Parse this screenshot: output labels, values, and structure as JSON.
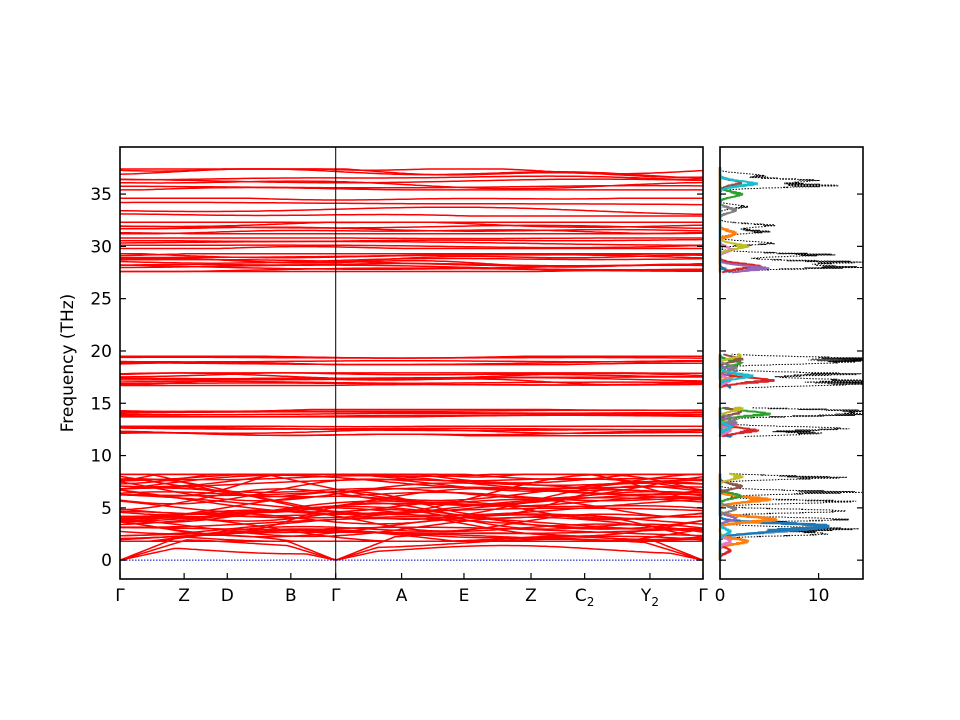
{
  "chart_data": [
    {
      "type": "line",
      "subtype": "phonon-band-structure",
      "title": "",
      "xlabel": "",
      "ylabel": "Frequency (THz)",
      "ylim": [
        -1.8,
        39.5
      ],
      "grid": false,
      "legend": "none",
      "line_color": "#ff0000",
      "zero_line_color": "#0000cc",
      "yticks": [
        0,
        5,
        10,
        15,
        20,
        25,
        30,
        35
      ],
      "kpoints": [
        {
          "label": "Γ",
          "sub": "",
          "x": 0.0
        },
        {
          "label": "Z",
          "sub": "",
          "x": 0.11
        },
        {
          "label": "D",
          "sub": "",
          "x": 0.184
        },
        {
          "label": "B",
          "sub": "",
          "x": 0.293
        },
        {
          "label": "Γ",
          "sub": "",
          "x": 0.37
        },
        {
          "label": "A",
          "sub": "",
          "x": 0.483
        },
        {
          "label": "E",
          "sub": "",
          "x": 0.59
        },
        {
          "label": "Z",
          "sub": "",
          "x": 0.705
        },
        {
          "label": "C",
          "sub": "2",
          "x": 0.797
        },
        {
          "label": "Y",
          "sub": "2",
          "x": 0.909
        },
        {
          "label": "Γ",
          "sub": "",
          "x": 1.0
        }
      ],
      "band_groups": [
        {
          "name": "acoustic",
          "range": [
            0,
            2.6
          ],
          "count": 3,
          "gamma_zero": true
        },
        {
          "name": "low-optical",
          "range": [
            1.8,
            8.2
          ],
          "count": 46
        },
        {
          "name": "band-12",
          "range": [
            11.9,
            12.8
          ],
          "count": 6
        },
        {
          "name": "band-14",
          "range": [
            13.7,
            14.4
          ],
          "count": 6
        },
        {
          "name": "band-17",
          "range": [
            16.7,
            17.9
          ],
          "count": 9
        },
        {
          "name": "band-19",
          "range": [
            18.7,
            19.5
          ],
          "count": 5
        },
        {
          "name": "band-28",
          "range": [
            27.6,
            29.3
          ],
          "count": 12
        },
        {
          "name": "band-30",
          "range": [
            29.8,
            30.8
          ],
          "count": 5
        },
        {
          "name": "band-32",
          "range": [
            31.2,
            32.3
          ],
          "count": 6
        },
        {
          "name": "band-34",
          "range": [
            32.9,
            34.6
          ],
          "count": 4
        },
        {
          "name": "band-36",
          "range": [
            35.4,
            37.4
          ],
          "count": 8
        }
      ]
    },
    {
      "type": "line",
      "subtype": "phonon-density-of-states",
      "title": "",
      "xlabel": "",
      "ylabel": "",
      "xlim": [
        0,
        14.5
      ],
      "ylim": [
        -1.8,
        39.5
      ],
      "xticks": [
        0,
        10
      ],
      "grid": false,
      "legend": "none",
      "total_style": "black-dotted",
      "projection_colors": [
        "#1f77b4",
        "#ff7f0e",
        "#2ca02c",
        "#d62728",
        "#9467bd",
        "#8c564b",
        "#e377c2",
        "#7f7f7f",
        "#bcbd22",
        "#17becf"
      ],
      "total_peaks": [
        {
          "freq": 36.3,
          "value": 10.5
        },
        {
          "freq": 35.8,
          "value": 12.0
        },
        {
          "freq": 36.8,
          "value": 4.5
        },
        {
          "freq": 33.8,
          "value": 3.0
        },
        {
          "freq": 32.0,
          "value": 6.0
        },
        {
          "freq": 31.4,
          "value": 5.2
        },
        {
          "freq": 30.3,
          "value": 6.0
        },
        {
          "freq": 29.2,
          "value": 12.0
        },
        {
          "freq": 28.5,
          "value": 14.5
        },
        {
          "freq": 28.0,
          "value": 14.5
        },
        {
          "freq": 19.3,
          "value": 14.5
        },
        {
          "freq": 18.9,
          "value": 13.0
        },
        {
          "freq": 17.8,
          "value": 14.5
        },
        {
          "freq": 17.2,
          "value": 14.5
        },
        {
          "freq": 16.8,
          "value": 14.0
        },
        {
          "freq": 14.3,
          "value": 14.5
        },
        {
          "freq": 13.9,
          "value": 14.0
        },
        {
          "freq": 12.6,
          "value": 14.0
        },
        {
          "freq": 12.1,
          "value": 10.5
        },
        {
          "freq": 7.9,
          "value": 13.0
        },
        {
          "freq": 6.5,
          "value": 14.5
        },
        {
          "freq": 5.6,
          "value": 14.5
        },
        {
          "freq": 4.7,
          "value": 14.5
        },
        {
          "freq": 3.9,
          "value": 14.5
        },
        {
          "freq": 3.0,
          "value": 14.0
        },
        {
          "freq": 2.5,
          "value": 12.0
        }
      ],
      "projected_peaks": [
        {
          "series": 0,
          "freq": 3.3,
          "value": 11.5
        },
        {
          "series": 0,
          "freq": 2.8,
          "value": 6.0
        },
        {
          "series": 1,
          "freq": 5.8,
          "value": 5.2
        },
        {
          "series": 1,
          "freq": 3.9,
          "value": 6.3
        },
        {
          "series": 1,
          "freq": 1.8,
          "value": 3.2
        },
        {
          "series": 2,
          "freq": 14.0,
          "value": 5.5
        },
        {
          "series": 3,
          "freq": 17.2,
          "value": 5.8
        },
        {
          "series": 3,
          "freq": 12.4,
          "value": 4.0
        },
        {
          "series": 3,
          "freq": 28.1,
          "value": 4.5
        },
        {
          "series": 4,
          "freq": 27.9,
          "value": 5.0
        },
        {
          "series": 8,
          "freq": 30.0,
          "value": 3.0
        },
        {
          "series": 9,
          "freq": 36.0,
          "value": 4.0
        },
        {
          "series": 9,
          "freq": 17.6,
          "value": 3.5
        }
      ]
    }
  ]
}
